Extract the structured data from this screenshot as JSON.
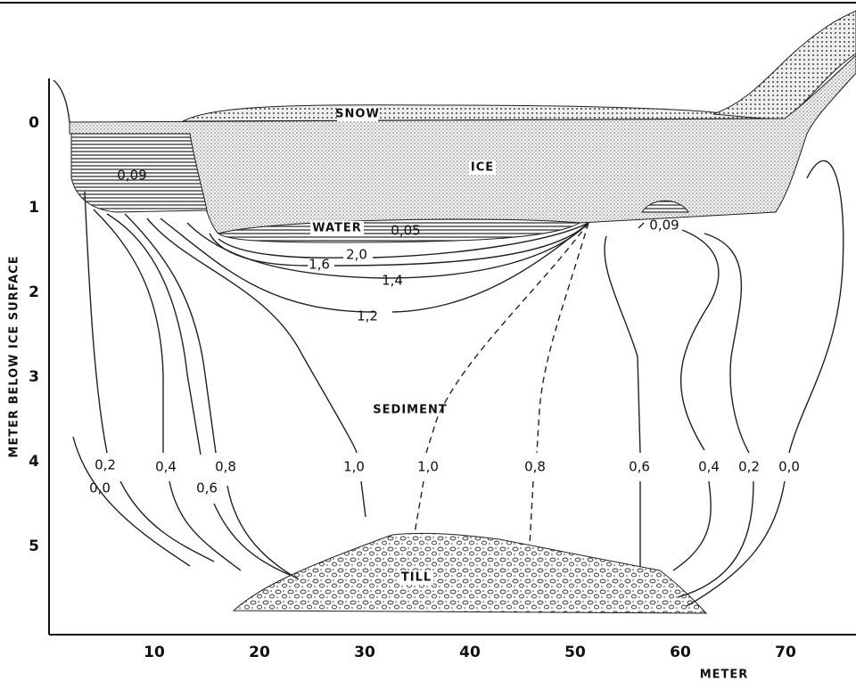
{
  "axes": {
    "y_label": "METER BELOW ICE SURFACE",
    "x_label": "METER",
    "yticks": [
      0,
      1,
      2,
      3,
      4,
      5
    ],
    "xticks": [
      10,
      20,
      30,
      40,
      50,
      60,
      70
    ]
  },
  "regions": {
    "snow": "SNOW",
    "ice": "ICE",
    "water": "WATER",
    "sediment": "SEDIMENT",
    "till": "TILL"
  },
  "contour_labels": [
    "0,09",
    "0,05",
    "2,0",
    "1,6",
    "1,4",
    "1,2",
    "0,09",
    "0,2",
    "0,0",
    "0,4",
    "0,6",
    "0,8",
    "1,0",
    "1,0",
    "0,8",
    "0,6",
    "0,4",
    "0,2",
    "0,0"
  ]
}
